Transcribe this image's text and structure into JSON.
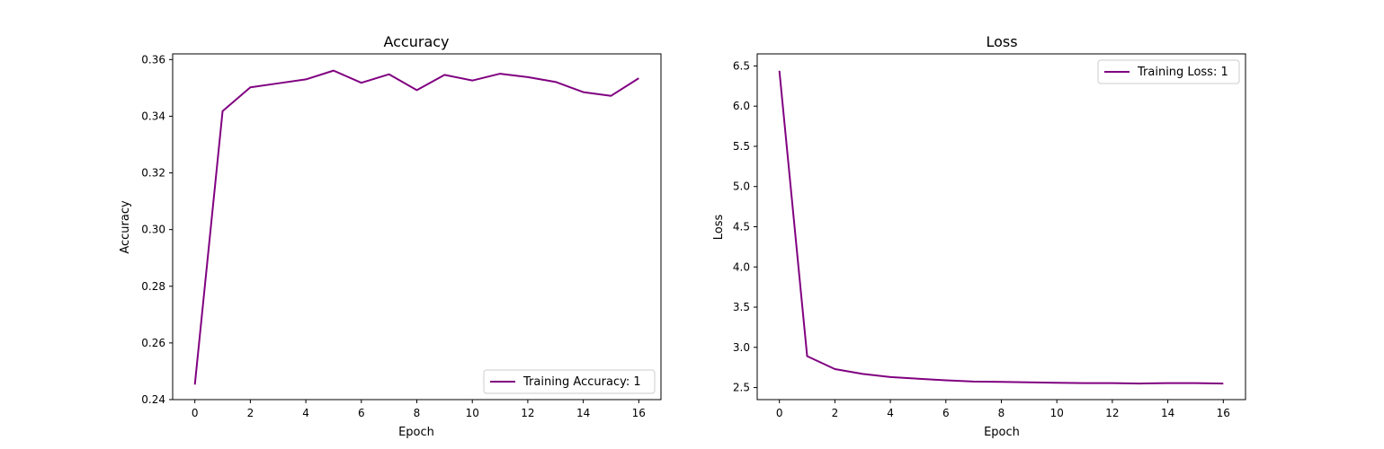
{
  "chart_data": [
    {
      "type": "line",
      "title": "Accuracy",
      "xlabel": "Epoch",
      "ylabel": "Accuracy",
      "xlim": [
        -0.8,
        16.8
      ],
      "ylim": [
        0.24,
        0.362
      ],
      "xticks": [
        0,
        2,
        4,
        6,
        8,
        10,
        12,
        14,
        16
      ],
      "yticks": [
        0.24,
        0.26,
        0.28,
        0.3,
        0.32,
        0.34,
        0.36
      ],
      "ytick_labels": [
        "0.24",
        "0.26",
        "0.28",
        "0.30",
        "0.32",
        "0.34",
        "0.36"
      ],
      "legend_position": "lower-right",
      "grid": false,
      "series": [
        {
          "name": "Training Accuracy: 1",
          "color": "#800080",
          "x": [
            0,
            1,
            2,
            3,
            4,
            5,
            6,
            7,
            8,
            9,
            10,
            11,
            12,
            13,
            14,
            15,
            16
          ],
          "y": [
            0.2453,
            0.3418,
            0.3502,
            0.3516,
            0.353,
            0.3561,
            0.3518,
            0.3548,
            0.3492,
            0.3546,
            0.3526,
            0.355,
            0.3538,
            0.3521,
            0.3485,
            0.3472,
            0.3534
          ]
        }
      ]
    },
    {
      "type": "line",
      "title": "Loss",
      "xlabel": "Epoch",
      "ylabel": "Loss",
      "xlim": [
        -0.8,
        16.8
      ],
      "ylim": [
        2.35,
        6.65
      ],
      "xticks": [
        0,
        2,
        4,
        6,
        8,
        10,
        12,
        14,
        16
      ],
      "yticks": [
        2.5,
        3.0,
        3.5,
        4.0,
        4.5,
        5.0,
        5.5,
        6.0,
        6.5
      ],
      "ytick_labels": [
        "2.5",
        "3.0",
        "3.5",
        "4.0",
        "4.5",
        "5.0",
        "5.5",
        "6.0",
        "6.5"
      ],
      "legend_position": "upper-right",
      "grid": false,
      "series": [
        {
          "name": "Training Loss: 1",
          "color": "#800080",
          "x": [
            0,
            1,
            2,
            3,
            4,
            5,
            6,
            7,
            8,
            9,
            10,
            11,
            12,
            13,
            14,
            15,
            16
          ],
          "y": [
            6.44,
            2.89,
            2.73,
            2.67,
            2.63,
            2.61,
            2.59,
            2.575,
            2.57,
            2.565,
            2.56,
            2.555,
            2.555,
            2.55,
            2.555,
            2.555,
            2.55
          ]
        }
      ]
    }
  ]
}
